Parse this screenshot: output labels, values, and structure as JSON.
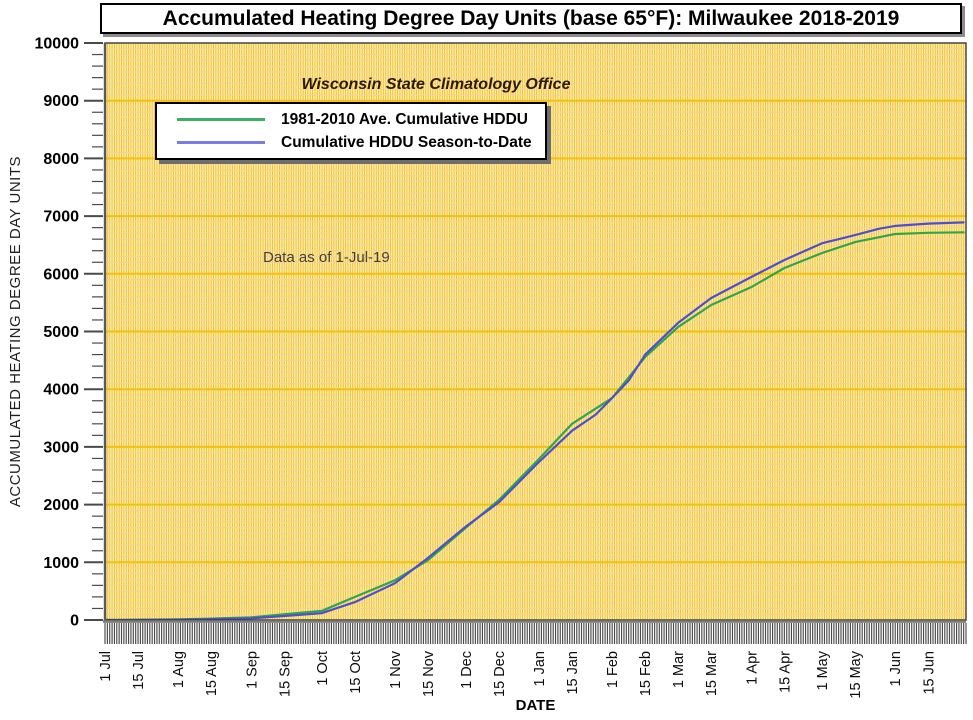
{
  "header": {
    "title": "Accumulated Heating Degree Day Units (base 65°F): Milwaukee 2018-2019"
  },
  "annotations": {
    "office": "Wisconsin State Climatology Office",
    "data_as_of": "Data as of 1-Jul-19"
  },
  "legend": {
    "items": [
      {
        "label": "1981-2010 Ave. Cumulative HDDU",
        "color": "#3fae63"
      },
      {
        "label": "Cumulative HDDU Season-to-Date",
        "color": "#7b7be8"
      }
    ]
  },
  "axes": {
    "x_label": "DATE",
    "y_label": "ACCUMULATED HEATING DEGREE DAY UNITS"
  },
  "colors": {
    "plot_bg": "#fff1a3",
    "grid_day": "#eebe32",
    "grid_minor": "#f9cda6",
    "grid_major": "#f5be17",
    "border_dark": "#3a3a3a",
    "axis_gray": "#7d7d7d",
    "tick_dark": "#4a4a4a",
    "tick_label": "#000000"
  },
  "chart_data": {
    "type": "line",
    "title": "Accumulated Heating Degree Day Units (base 65°F): Milwaukee 2018-2019",
    "xlabel": "DATE",
    "ylabel": "ACCUMULATED HEATING DEGREE DAY UNITS",
    "ylim": [
      0,
      10000
    ],
    "y_major_step": 1000,
    "y_minor_step": 200,
    "total_days": 365,
    "grid": "dense daily vertical + 100-unit horizontal minor + 1000-unit horizontal major",
    "legend_position": "upper-left-inside",
    "x_ticks": [
      {
        "label": "1 Jul",
        "day": 0
      },
      {
        "label": "15 Jul",
        "day": 14
      },
      {
        "label": "1 Aug",
        "day": 31
      },
      {
        "label": "15 Aug",
        "day": 45
      },
      {
        "label": "1 Sep",
        "day": 62
      },
      {
        "label": "15 Sep",
        "day": 76
      },
      {
        "label": "1 Oct",
        "day": 92
      },
      {
        "label": "15 Oct",
        "day": 106
      },
      {
        "label": "1 Nov",
        "day": 123
      },
      {
        "label": "15 Nov",
        "day": 137
      },
      {
        "label": "1 Dec",
        "day": 153
      },
      {
        "label": "15 Dec",
        "day": 167
      },
      {
        "label": "1 Jan",
        "day": 184
      },
      {
        "label": "15 Jan",
        "day": 198
      },
      {
        "label": "1 Feb",
        "day": 215
      },
      {
        "label": "15 Feb",
        "day": 229
      },
      {
        "label": "1 Mar",
        "day": 243
      },
      {
        "label": "15 Mar",
        "day": 257
      },
      {
        "label": "1 Apr",
        "day": 274
      },
      {
        "label": "15 Apr",
        "day": 288
      },
      {
        "label": "1 May",
        "day": 304
      },
      {
        "label": "15 May",
        "day": 318
      },
      {
        "label": "1 Jun",
        "day": 335
      },
      {
        "label": "15 Jun",
        "day": 349
      }
    ],
    "series": [
      {
        "name": "1981-2010 Ave. Cumulative HDDU",
        "color": "#2fa54f",
        "x_days": [
          0,
          14,
          31,
          45,
          62,
          76,
          92,
          106,
          123,
          137,
          153,
          167,
          184,
          198,
          215,
          229,
          243,
          257,
          274,
          288,
          304,
          318,
          335,
          349,
          364
        ],
        "values": [
          0,
          5,
          12,
          25,
          45,
          100,
          160,
          400,
          690,
          1040,
          1600,
          2080,
          2790,
          3400,
          3850,
          4560,
          5080,
          5460,
          5770,
          6100,
          6360,
          6550,
          6690,
          6710,
          6720
        ]
      },
      {
        "name": "Cumulative HDDU Season-to-Date",
        "color": "#4e4ed0",
        "x_days": [
          0,
          14,
          31,
          45,
          62,
          76,
          92,
          106,
          123,
          137,
          153,
          167,
          184,
          198,
          208,
          215,
          222,
          229,
          243,
          257,
          274,
          288,
          304,
          311,
          318,
          328,
          335,
          349,
          364
        ],
        "values": [
          0,
          2,
          6,
          15,
          30,
          70,
          120,
          310,
          640,
          1080,
          1620,
          2040,
          2740,
          3280,
          3560,
          3850,
          4150,
          4600,
          5150,
          5580,
          5945,
          6240,
          6530,
          6600,
          6670,
          6780,
          6830,
          6870,
          6890
        ]
      }
    ]
  }
}
